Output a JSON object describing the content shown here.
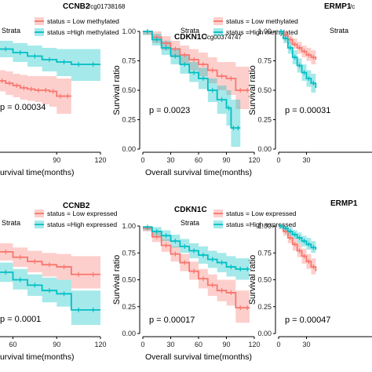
{
  "chart_data": [
    {
      "type": "line",
      "title": "CCNB2",
      "subtitle": "/cg01738168",
      "xlabel": "Overall survival time(months)",
      "ylabel": "",
      "legend_title": "Strata",
      "legend": [
        "status = Low methylated",
        "status =High methylated"
      ],
      "xlim": [
        0,
        120
      ],
      "ylim": [
        0,
        1
      ],
      "xticks": [
        "90",
        "120"
      ],
      "yticks": [],
      "pvalue": "p = 0.00034",
      "series": [
        {
          "name": "status = Low methylated",
          "color": "#f8766d",
          "x": [
            0,
            5,
            10,
            15,
            20,
            25,
            30,
            35,
            40,
            45,
            50,
            55,
            60,
            65,
            70,
            75,
            80,
            85,
            90,
            95,
            100
          ],
          "y": [
            0.97,
            0.93,
            0.89,
            0.84,
            0.79,
            0.74,
            0.7,
            0.66,
            0.63,
            0.6,
            0.58,
            0.56,
            0.54,
            0.52,
            0.51,
            0.5,
            0.5,
            0.49,
            0.45,
            0.45,
            0.45
          ],
          "lo": [
            0.92,
            0.88,
            0.83,
            0.78,
            0.73,
            0.68,
            0.63,
            0.59,
            0.55,
            0.52,
            0.49,
            0.46,
            0.44,
            0.42,
            0.41,
            0.4,
            0.38,
            0.36,
            0.3,
            0.3,
            0.3
          ],
          "hi": [
            1,
            0.98,
            0.95,
            0.91,
            0.86,
            0.81,
            0.77,
            0.73,
            0.7,
            0.68,
            0.67,
            0.66,
            0.64,
            0.63,
            0.62,
            0.62,
            0.62,
            0.62,
            0.6,
            0.6,
            0.6
          ]
        },
        {
          "name": "status =High methylated",
          "color": "#00bfc4",
          "x": [
            0,
            10,
            20,
            30,
            40,
            50,
            60,
            70,
            80,
            90,
            100,
            110,
            120
          ],
          "y": [
            0.99,
            0.97,
            0.95,
            0.92,
            0.89,
            0.85,
            0.82,
            0.79,
            0.76,
            0.74,
            0.72,
            0.72,
            0.72
          ],
          "lo": [
            0.96,
            0.93,
            0.9,
            0.87,
            0.83,
            0.78,
            0.74,
            0.7,
            0.66,
            0.62,
            0.58,
            0.58,
            0.58
          ],
          "hi": [
            1,
            1,
            0.99,
            0.97,
            0.95,
            0.92,
            0.9,
            0.88,
            0.86,
            0.85,
            0.85,
            0.85,
            0.85
          ]
        }
      ]
    },
    {
      "type": "line",
      "title": "CDKN1C",
      "subtitle": "/cg00374747",
      "xlabel": "Overall survival time(months)",
      "ylabel": "Survival ratio",
      "legend_title": "Strata",
      "legend": [
        "status = Low methylated",
        "status =High methylated"
      ],
      "xlim": [
        0,
        120
      ],
      "ylim": [
        0,
        1
      ],
      "xticks": [
        "0",
        "30",
        "60",
        "90",
        "120"
      ],
      "yticks": [
        "0.00",
        "0.25",
        "0.50",
        "0.75",
        "1.00"
      ],
      "pvalue": "p = 0.0023",
      "series": [
        {
          "name": "status = Low methylated",
          "color": "#f8766d",
          "x": [
            0,
            10,
            20,
            30,
            40,
            50,
            60,
            70,
            80,
            90,
            100,
            110,
            115
          ],
          "y": [
            1,
            0.95,
            0.9,
            0.85,
            0.8,
            0.76,
            0.72,
            0.67,
            0.62,
            0.6,
            0.5,
            0.5,
            0.5
          ],
          "lo": [
            0.97,
            0.9,
            0.84,
            0.78,
            0.72,
            0.67,
            0.62,
            0.56,
            0.5,
            0.46,
            0.34,
            0.34,
            0.34
          ],
          "hi": [
            1,
            1,
            0.96,
            0.92,
            0.88,
            0.85,
            0.82,
            0.78,
            0.74,
            0.74,
            0.7,
            0.7,
            0.7
          ]
        },
        {
          "name": "status =High methylated",
          "color": "#00bfc4",
          "x": [
            0,
            10,
            20,
            30,
            40,
            50,
            60,
            70,
            80,
            90,
            95,
            100,
            105
          ],
          "y": [
            1,
            0.93,
            0.86,
            0.79,
            0.72,
            0.65,
            0.6,
            0.5,
            0.42,
            0.35,
            0.18,
            0.18,
            0.18
          ],
          "lo": [
            0.97,
            0.88,
            0.8,
            0.72,
            0.64,
            0.57,
            0.51,
            0.4,
            0.3,
            0.2,
            0.02,
            0.02,
            0.02
          ],
          "hi": [
            1,
            0.98,
            0.92,
            0.86,
            0.8,
            0.74,
            0.69,
            0.6,
            0.54,
            0.5,
            0.42,
            0.42,
            0.42
          ]
        }
      ]
    },
    {
      "type": "line",
      "title": "ERMP1",
      "subtitle": "/c",
      "xlabel": "",
      "ylabel": "Survival ratio",
      "legend_title": "Strata",
      "legend": [],
      "xlim": [
        0,
        120
      ],
      "ylim": [
        0,
        1
      ],
      "xticks": [
        "0",
        "30"
      ],
      "yticks": [
        "0.00",
        "0.25",
        "0.50",
        "0.75",
        "1.00"
      ],
      "pvalue": "p = 0.00031",
      "series": [
        {
          "name": "status = Low methylated",
          "color": "#f8766d",
          "x": [
            0,
            5,
            10,
            15,
            20,
            25,
            30,
            35,
            40
          ],
          "y": [
            1,
            0.97,
            0.93,
            0.89,
            0.86,
            0.83,
            0.8,
            0.78,
            0.76
          ],
          "lo": [
            0.98,
            0.94,
            0.89,
            0.85,
            0.81,
            0.78,
            0.75,
            0.72,
            0.7
          ],
          "hi": [
            1,
            1,
            0.97,
            0.94,
            0.91,
            0.88,
            0.86,
            0.84,
            0.82
          ]
        },
        {
          "name": "status =High methylated",
          "color": "#00bfc4",
          "x": [
            0,
            5,
            10,
            15,
            20,
            25,
            30,
            35,
            40
          ],
          "y": [
            1,
            0.94,
            0.86,
            0.78,
            0.71,
            0.65,
            0.6,
            0.56,
            0.52
          ],
          "lo": [
            0.97,
            0.9,
            0.81,
            0.72,
            0.65,
            0.58,
            0.53,
            0.48,
            0.44
          ],
          "hi": [
            1,
            0.98,
            0.91,
            0.84,
            0.77,
            0.72,
            0.67,
            0.64,
            0.6
          ]
        }
      ]
    },
    {
      "type": "line",
      "title": "CCNB2",
      "subtitle": "",
      "xlabel": "Overall survival time(months)",
      "ylabel": "",
      "legend_title": "Strata",
      "legend": [
        "status = Low expressed",
        "status =High expressed"
      ],
      "xlim": [
        0,
        120
      ],
      "ylim": [
        0,
        1
      ],
      "xticks": [
        "60",
        "90",
        "120"
      ],
      "yticks": [],
      "pvalue": "p = 0.0001",
      "series": [
        {
          "name": "status = Low expressed",
          "color": "#f8766d",
          "x": [
            0,
            10,
            20,
            30,
            40,
            50,
            60,
            70,
            80,
            90,
            100,
            110,
            120
          ],
          "y": [
            0.99,
            0.95,
            0.91,
            0.86,
            0.81,
            0.76,
            0.71,
            0.67,
            0.64,
            0.62,
            0.55,
            0.55,
            0.55
          ],
          "lo": [
            0.96,
            0.91,
            0.86,
            0.8,
            0.74,
            0.68,
            0.62,
            0.57,
            0.53,
            0.5,
            0.42,
            0.42,
            0.42
          ],
          "hi": [
            1,
            0.99,
            0.96,
            0.92,
            0.88,
            0.84,
            0.8,
            0.77,
            0.75,
            0.74,
            0.72,
            0.72,
            0.72
          ]
        },
        {
          "name": "status =High expressed",
          "color": "#00bfc4",
          "x": [
            0,
            10,
            20,
            30,
            40,
            50,
            60,
            70,
            80,
            90,
            100,
            110,
            120
          ],
          "y": [
            0.97,
            0.9,
            0.82,
            0.74,
            0.65,
            0.57,
            0.5,
            0.45,
            0.4,
            0.37,
            0.22,
            0.22,
            0.22
          ],
          "lo": [
            0.93,
            0.84,
            0.75,
            0.66,
            0.57,
            0.48,
            0.41,
            0.35,
            0.29,
            0.25,
            0.08,
            0.08,
            0.08
          ],
          "hi": [
            1,
            0.96,
            0.89,
            0.82,
            0.74,
            0.66,
            0.6,
            0.55,
            0.52,
            0.5,
            0.4,
            0.4,
            0.4
          ]
        }
      ]
    },
    {
      "type": "line",
      "title": "CDKN1C",
      "subtitle": "",
      "xlabel": "Overall survival time(months)",
      "ylabel": "Survival ratio",
      "legend_title": "Strata",
      "legend": [
        "status = Low expressed",
        "status =High expressed"
      ],
      "xlim": [
        0,
        120
      ],
      "ylim": [
        0,
        1
      ],
      "xticks": [
        "0",
        "30",
        "60",
        "90",
        "120"
      ],
      "yticks": [
        "0.00",
        "0.25",
        "0.50",
        "0.75",
        "1.00"
      ],
      "pvalue": "p = 0.00017",
      "series": [
        {
          "name": "status = Low expressed",
          "color": "#f8766d",
          "x": [
            0,
            10,
            20,
            30,
            40,
            50,
            60,
            70,
            80,
            90,
            100,
            110,
            115
          ],
          "y": [
            0.98,
            0.9,
            0.82,
            0.74,
            0.66,
            0.58,
            0.51,
            0.45,
            0.4,
            0.38,
            0.24,
            0.24,
            0.24
          ],
          "lo": [
            0.95,
            0.85,
            0.76,
            0.67,
            0.58,
            0.5,
            0.42,
            0.35,
            0.3,
            0.26,
            0.1,
            0.1,
            0.1
          ],
          "hi": [
            1,
            0.95,
            0.88,
            0.81,
            0.74,
            0.67,
            0.6,
            0.55,
            0.5,
            0.5,
            0.4,
            0.4,
            0.4
          ]
        },
        {
          "name": "status =High expressed",
          "color": "#00bfc4",
          "x": [
            0,
            10,
            20,
            30,
            40,
            50,
            60,
            70,
            80,
            90,
            100,
            110,
            115
          ],
          "y": [
            0.99,
            0.95,
            0.91,
            0.86,
            0.81,
            0.77,
            0.73,
            0.69,
            0.66,
            0.62,
            0.6,
            0.6,
            0.6
          ],
          "lo": [
            0.96,
            0.91,
            0.86,
            0.8,
            0.75,
            0.7,
            0.65,
            0.61,
            0.57,
            0.53,
            0.5,
            0.5,
            0.5
          ],
          "hi": [
            1,
            0.99,
            0.96,
            0.92,
            0.88,
            0.84,
            0.81,
            0.77,
            0.75,
            0.72,
            0.7,
            0.7,
            0.7
          ]
        }
      ]
    },
    {
      "type": "line",
      "title": "ERMP1",
      "subtitle": "",
      "xlabel": "",
      "ylabel": "Survival ratio",
      "legend_title": "",
      "legend": [],
      "xlim": [
        0,
        120
      ],
      "ylim": [
        0,
        1
      ],
      "xticks": [
        "0",
        "30"
      ],
      "yticks": [
        "0.00",
        "0.25",
        "0.50",
        "0.75",
        "1.00"
      ],
      "pvalue": "p = 0.00047",
      "series": [
        {
          "name": "status = Low expressed",
          "color": "#f8766d",
          "x": [
            0,
            5,
            10,
            15,
            20,
            25,
            30,
            35,
            40
          ],
          "y": [
            1,
            0.95,
            0.89,
            0.83,
            0.77,
            0.72,
            0.67,
            0.62,
            0.58
          ],
          "lo": [
            0.97,
            0.91,
            0.84,
            0.77,
            0.71,
            0.65,
            0.6,
            0.55,
            0.5
          ],
          "hi": [
            1,
            0.99,
            0.94,
            0.89,
            0.84,
            0.79,
            0.74,
            0.7,
            0.66
          ]
        },
        {
          "name": "status =High expressed",
          "color": "#00bfc4",
          "x": [
            0,
            5,
            10,
            15,
            20,
            25,
            30,
            35,
            40
          ],
          "y": [
            1,
            0.98,
            0.95,
            0.92,
            0.89,
            0.86,
            0.83,
            0.8,
            0.78
          ],
          "lo": [
            0.98,
            0.95,
            0.91,
            0.88,
            0.84,
            0.81,
            0.78,
            0.75,
            0.72
          ],
          "hi": [
            1,
            1,
            0.99,
            0.96,
            0.94,
            0.91,
            0.89,
            0.86,
            0.84
          ]
        }
      ]
    }
  ]
}
